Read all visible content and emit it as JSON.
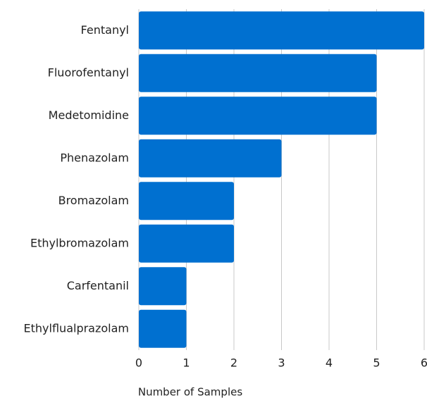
{
  "chart_data": {
    "type": "barh",
    "categories": [
      "Fentanyl",
      "Fluorofentanyl",
      "Medetomidine",
      "Phenazolam",
      "Bromazolam",
      "Ethylbromazolam",
      "Carfentanil",
      "Ethylflualprazolam"
    ],
    "values": [
      6,
      5,
      5,
      3,
      2,
      2,
      1,
      1
    ],
    "color": "#0070d0",
    "xlabel": "Number of Samples",
    "xlim": [
      0,
      6
    ],
    "xticks": [
      0,
      1,
      2,
      3,
      4,
      5,
      6
    ],
    "grid": true
  }
}
